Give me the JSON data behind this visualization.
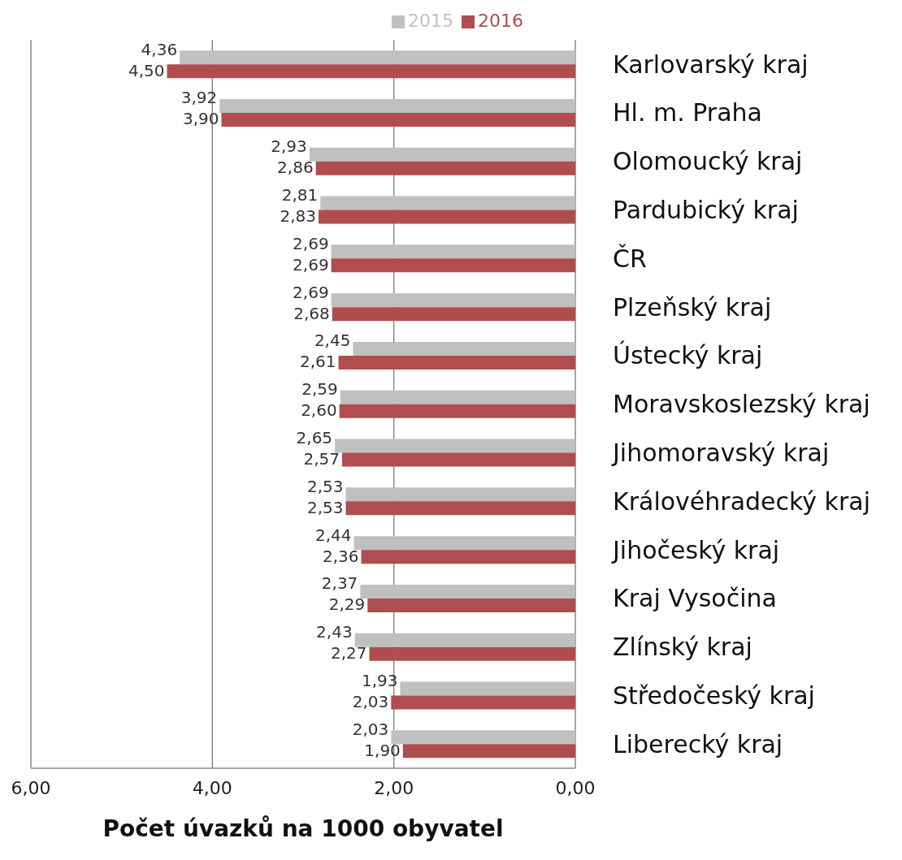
{
  "chart_data": {
    "type": "bar",
    "orientation": "horizontal",
    "xlabel": "Počet úvazků na 1000 obyvatel",
    "categories": [
      "Karlovarský kraj",
      "Hl. m. Praha",
      "Olomoucký kraj",
      "Pardubický kraj",
      "ČR",
      "Plzeňský kraj",
      "Ústecký kraj",
      "Moravskoslezský kraj",
      "Jihomoravský kraj",
      "Královéhradecký kraj",
      "Jihočeský kraj",
      "Kraj Vysočina",
      "Zlínský kraj",
      "Středočeský kraj",
      "Liberecký kraj"
    ],
    "series": [
      {
        "name": "2015",
        "color": "#c0c0c0",
        "values": [
          4.36,
          3.92,
          2.93,
          2.81,
          2.69,
          2.69,
          2.45,
          2.59,
          2.65,
          2.53,
          2.44,
          2.37,
          2.43,
          1.93,
          2.03
        ],
        "value_labels": [
          "4,36",
          "3,92",
          "2,93",
          "2,81",
          "2,69",
          "2,69",
          "2,45",
          "2,59",
          "2,65",
          "2,53",
          "2,44",
          "2,37",
          "2,43",
          "1,93",
          "2,03"
        ]
      },
      {
        "name": "2016",
        "color": "#b04d4f",
        "values": [
          4.5,
          3.9,
          2.86,
          2.83,
          2.69,
          2.68,
          2.61,
          2.6,
          2.57,
          2.53,
          2.36,
          2.29,
          2.27,
          2.03,
          1.9
        ],
        "value_labels": [
          "4,50",
          "3,90",
          "2,86",
          "2,83",
          "2,69",
          "2,68",
          "2,61",
          "2,60",
          "2,57",
          "2,53",
          "2,36",
          "2,29",
          "2,27",
          "2,03",
          "1,90"
        ]
      }
    ],
    "xlim": [
      6,
      0
    ],
    "xticks": [
      {
        "value": 6,
        "label": "6,00"
      },
      {
        "value": 4,
        "label": "4,00"
      },
      {
        "value": 2,
        "label": "2,00"
      },
      {
        "value": 0,
        "label": "0,00"
      }
    ],
    "grid": "x",
    "legend": "top"
  }
}
